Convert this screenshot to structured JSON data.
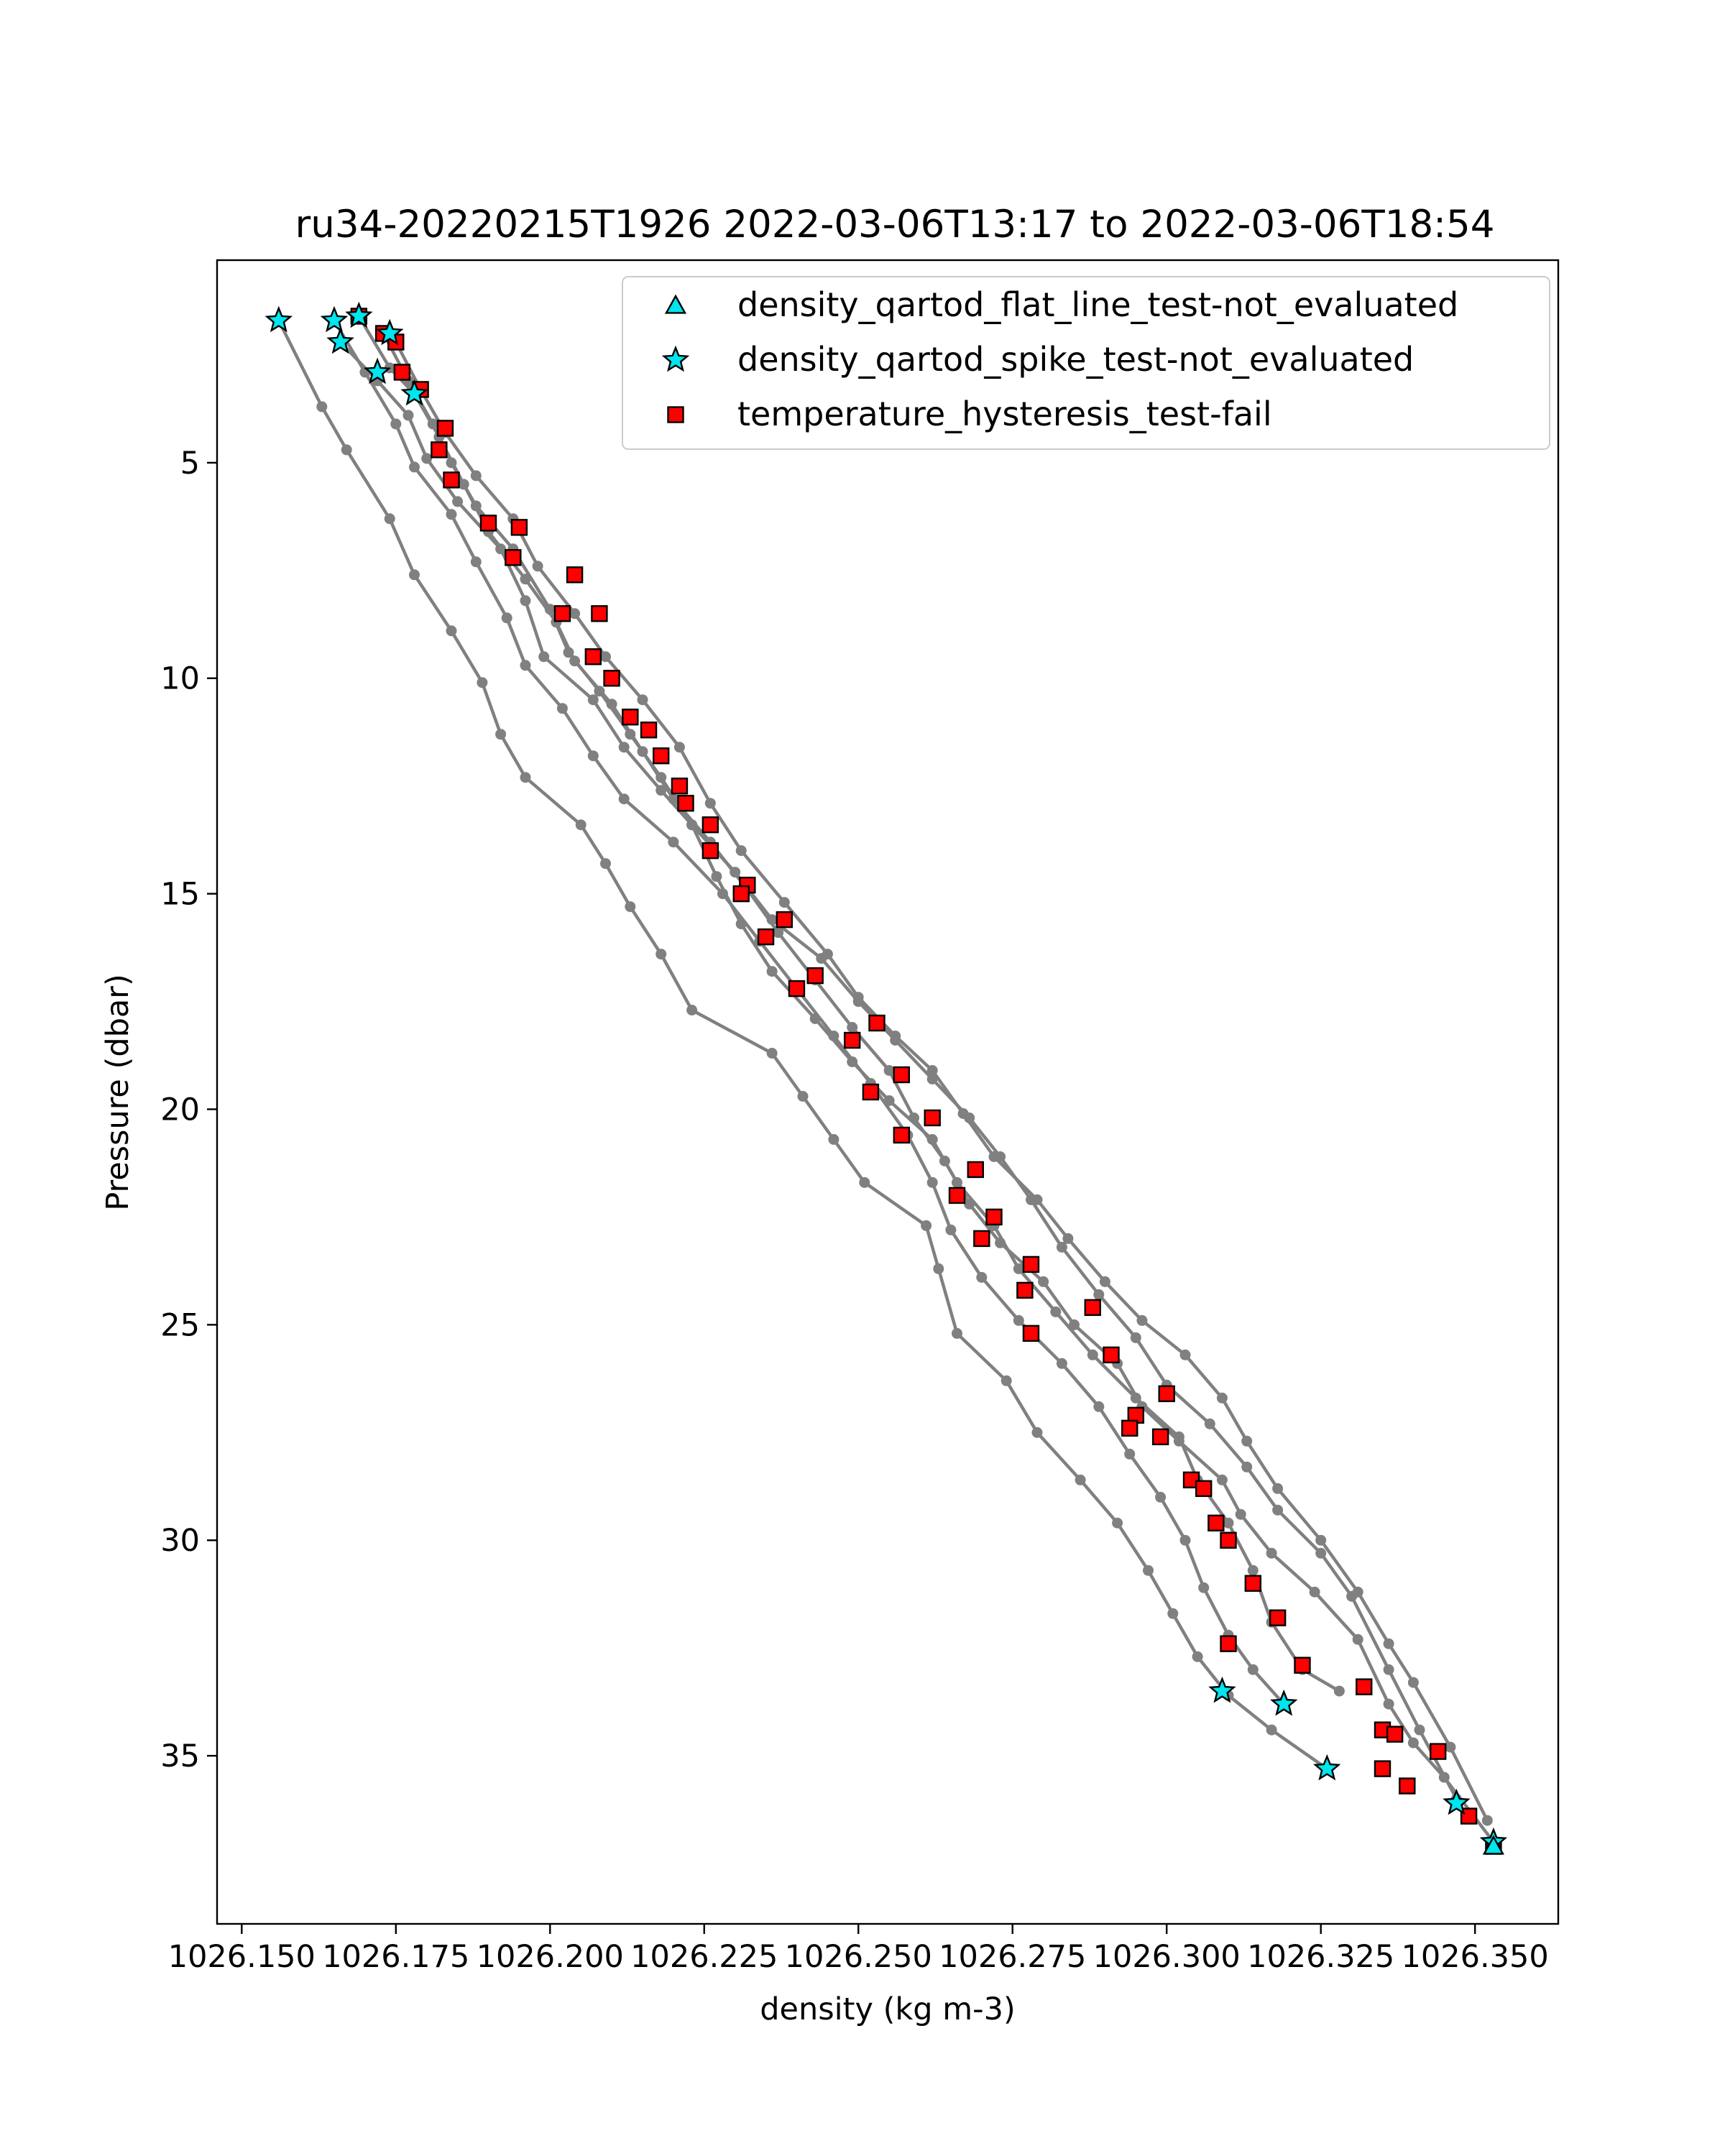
{
  "chart_data": {
    "type": "scatter",
    "title": "ru34-20220215T1926 2022-03-06T13:17 to 2022-03-06T18:54",
    "xlabel": "density (kg m-3)",
    "ylabel": "Pressure (dbar)",
    "xlim": [
      1026.146,
      1026.3635
    ],
    "ylim": [
      38.9,
      0.3
    ],
    "y_inverted": true,
    "grid": false,
    "legend_position": "top-right",
    "x_ticks": [
      1026.15,
      1026.175,
      1026.2,
      1026.225,
      1026.25,
      1026.275,
      1026.3,
      1026.325,
      1026.35
    ],
    "x_tick_labels": [
      "1026.150",
      "1026.175",
      "1026.200",
      "1026.225",
      "1026.250",
      "1026.275",
      "1026.300",
      "1026.325",
      "1026.350"
    ],
    "y_ticks": [
      5,
      10,
      15,
      20,
      25,
      30,
      35
    ],
    "y_tick_labels": [
      "5",
      "10",
      "15",
      "20",
      "25",
      "30",
      "35"
    ],
    "colors": {
      "profile_line": "#808080",
      "flat_line_marker": "#00e5ee",
      "spike_marker": "#00e5ee",
      "hysteresis_marker": "#ff0000",
      "marker_edge": "#000000"
    },
    "profiles": [
      [
        [
          1026.156,
          1.7
        ],
        [
          1026.163,
          3.7
        ],
        [
          1026.167,
          4.7
        ],
        [
          1026.174,
          6.3
        ],
        [
          1026.178,
          7.6
        ],
        [
          1026.184,
          8.9
        ],
        [
          1026.189,
          10.1
        ],
        [
          1026.192,
          11.3
        ],
        [
          1026.196,
          12.3
        ],
        [
          1026.205,
          13.4
        ],
        [
          1026.209,
          14.3
        ],
        [
          1026.213,
          15.3
        ],
        [
          1026.218,
          16.4
        ],
        [
          1026.223,
          17.7
        ],
        [
          1026.236,
          18.7
        ],
        [
          1026.241,
          19.7
        ],
        [
          1026.246,
          20.7
        ],
        [
          1026.251,
          21.7
        ],
        [
          1026.261,
          22.7
        ],
        [
          1026.263,
          23.7
        ],
        [
          1026.266,
          25.2
        ],
        [
          1026.274,
          26.3
        ],
        [
          1026.279,
          27.5
        ],
        [
          1026.286,
          28.6
        ],
        [
          1026.292,
          29.6
        ],
        [
          1026.297,
          30.7
        ],
        [
          1026.301,
          31.7
        ],
        [
          1026.305,
          32.7
        ],
        [
          1026.31,
          33.6
        ],
        [
          1026.317,
          34.4
        ],
        [
          1026.326,
          35.3
        ]
      ],
      [
        [
          1026.165,
          1.7
        ],
        [
          1026.17,
          2.9
        ],
        [
          1026.175,
          4.1
        ],
        [
          1026.178,
          5.1
        ],
        [
          1026.184,
          6.2
        ],
        [
          1026.188,
          7.3
        ],
        [
          1026.193,
          8.6
        ],
        [
          1026.196,
          9.7
        ],
        [
          1026.202,
          10.7
        ],
        [
          1026.207,
          11.8
        ],
        [
          1026.212,
          12.8
        ],
        [
          1026.22,
          13.8
        ],
        [
          1026.228,
          15.0
        ],
        [
          1026.234,
          16.1
        ],
        [
          1026.24,
          17.2
        ],
        [
          1026.246,
          18.3
        ],
        [
          1026.252,
          19.4
        ],
        [
          1026.258,
          20.6
        ],
        [
          1026.262,
          21.7
        ],
        [
          1026.265,
          22.8
        ],
        [
          1026.27,
          23.9
        ],
        [
          1026.276,
          24.9
        ],
        [
          1026.283,
          25.9
        ],
        [
          1026.289,
          26.9
        ],
        [
          1026.294,
          28.0
        ],
        [
          1026.299,
          29.0
        ],
        [
          1026.303,
          30.0
        ],
        [
          1026.306,
          31.1
        ],
        [
          1026.31,
          32.2
        ],
        [
          1026.314,
          33.0
        ],
        [
          1026.319,
          33.8
        ]
      ],
      [
        [
          1026.166,
          2.2
        ],
        [
          1026.172,
          3.1
        ],
        [
          1026.177,
          3.9
        ],
        [
          1026.18,
          4.9
        ],
        [
          1026.185,
          5.9
        ],
        [
          1026.192,
          7.0
        ],
        [
          1026.196,
          8.2
        ],
        [
          1026.199,
          9.5
        ],
        [
          1026.207,
          10.5
        ],
        [
          1026.212,
          11.6
        ],
        [
          1026.218,
          12.6
        ],
        [
          1026.223,
          13.4
        ],
        [
          1026.227,
          14.6
        ],
        [
          1026.231,
          15.7
        ],
        [
          1026.236,
          16.8
        ],
        [
          1026.243,
          17.9
        ],
        [
          1026.249,
          18.9
        ],
        [
          1026.255,
          19.8
        ],
        [
          1026.262,
          20.7
        ],
        [
          1026.266,
          21.7
        ],
        [
          1026.272,
          22.7
        ],
        [
          1026.276,
          23.7
        ],
        [
          1026.282,
          24.7
        ],
        [
          1026.288,
          25.7
        ],
        [
          1026.295,
          26.7
        ],
        [
          1026.302,
          27.6
        ],
        [
          1026.305,
          28.6
        ],
        [
          1026.31,
          29.6
        ],
        [
          1026.314,
          30.7
        ],
        [
          1026.317,
          31.9
        ],
        [
          1026.322,
          33.0
        ],
        [
          1026.328,
          33.5
        ]
      ],
      [
        [
          1026.169,
          1.6
        ],
        [
          1026.174,
          2.8
        ],
        [
          1026.178,
          3.4
        ],
        [
          1026.182,
          4.4
        ],
        [
          1026.186,
          5.5
        ],
        [
          1026.19,
          6.6
        ],
        [
          1026.196,
          7.7
        ],
        [
          1026.201,
          8.7
        ],
        [
          1026.204,
          9.6
        ],
        [
          1026.21,
          10.6
        ],
        [
          1026.215,
          11.7
        ],
        [
          1026.22,
          12.8
        ],
        [
          1026.226,
          13.8
        ],
        [
          1026.232,
          14.9
        ],
        [
          1026.237,
          15.9
        ],
        [
          1026.243,
          17.0
        ],
        [
          1026.249,
          18.1
        ],
        [
          1026.255,
          19.1
        ],
        [
          1026.259,
          20.2
        ],
        [
          1026.264,
          21.2
        ],
        [
          1026.268,
          22.2
        ],
        [
          1026.273,
          23.1
        ],
        [
          1026.28,
          24.0
        ],
        [
          1026.285,
          25.0
        ],
        [
          1026.292,
          25.9
        ],
        [
          1026.296,
          26.9
        ],
        [
          1026.302,
          27.7
        ],
        [
          1026.309,
          28.6
        ],
        [
          1026.312,
          29.4
        ],
        [
          1026.317,
          30.3
        ],
        [
          1026.324,
          31.2
        ],
        [
          1026.331,
          32.3
        ],
        [
          1026.336,
          33.8
        ],
        [
          1026.34,
          34.7
        ],
        [
          1026.345,
          35.5
        ],
        [
          1026.353,
          37.0
        ]
      ],
      [
        [
          1026.173,
          2.0
        ],
        [
          1026.177,
          3.1
        ],
        [
          1026.181,
          4.1
        ],
        [
          1026.184,
          5.0
        ],
        [
          1026.188,
          6.0
        ],
        [
          1026.194,
          7.0
        ],
        [
          1026.2,
          8.4
        ],
        [
          1026.203,
          9.4
        ],
        [
          1026.208,
          10.3
        ],
        [
          1026.213,
          11.3
        ],
        [
          1026.218,
          12.3
        ],
        [
          1026.223,
          13.4
        ],
        [
          1026.23,
          14.5
        ],
        [
          1026.236,
          15.6
        ],
        [
          1026.244,
          16.5
        ],
        [
          1026.25,
          17.5
        ],
        [
          1026.256,
          18.4
        ],
        [
          1026.262,
          19.3
        ],
        [
          1026.268,
          20.2
        ],
        [
          1026.273,
          21.1
        ],
        [
          1026.278,
          22.1
        ],
        [
          1026.283,
          23.2
        ],
        [
          1026.289,
          24.3
        ],
        [
          1026.295,
          25.3
        ],
        [
          1026.3,
          26.4
        ],
        [
          1026.307,
          27.3
        ],
        [
          1026.313,
          28.3
        ],
        [
          1026.318,
          29.3
        ],
        [
          1026.325,
          30.3
        ],
        [
          1026.33,
          31.3
        ],
        [
          1026.336,
          33.0
        ],
        [
          1026.341,
          34.4
        ],
        [
          1026.347,
          36.0
        ]
      ],
      [
        [
          1026.175,
          2.2
        ],
        [
          1026.179,
          3.3
        ],
        [
          1026.183,
          4.3
        ],
        [
          1026.188,
          5.3
        ],
        [
          1026.194,
          6.3
        ],
        [
          1026.198,
          7.4
        ],
        [
          1026.204,
          8.5
        ],
        [
          1026.209,
          9.5
        ],
        [
          1026.215,
          10.5
        ],
        [
          1026.221,
          11.6
        ],
        [
          1026.226,
          12.9
        ],
        [
          1026.231,
          14.0
        ],
        [
          1026.238,
          15.2
        ],
        [
          1026.245,
          16.4
        ],
        [
          1026.25,
          17.4
        ],
        [
          1026.256,
          18.3
        ],
        [
          1026.262,
          19.1
        ],
        [
          1026.267,
          20.1
        ],
        [
          1026.272,
          21.1
        ],
        [
          1026.279,
          22.1
        ],
        [
          1026.284,
          23.0
        ],
        [
          1026.29,
          24.0
        ],
        [
          1026.296,
          24.9
        ],
        [
          1026.303,
          25.7
        ],
        [
          1026.309,
          26.7
        ],
        [
          1026.313,
          27.7
        ],
        [
          1026.318,
          28.8
        ],
        [
          1026.325,
          30.0
        ],
        [
          1026.331,
          31.2
        ],
        [
          1026.336,
          32.4
        ],
        [
          1026.34,
          33.3
        ],
        [
          1026.346,
          34.8
        ],
        [
          1026.352,
          36.5
        ]
      ]
    ],
    "series": [
      {
        "name": "density_qartod_flat_line_test-not_evaluated",
        "marker": "triangle",
        "points": [
          [
            1026.353,
            37.1
          ]
        ]
      },
      {
        "name": "density_qartod_spike_test-not_evaluated",
        "marker": "star",
        "points": [
          [
            1026.156,
            1.7
          ],
          [
            1026.165,
            1.7
          ],
          [
            1026.166,
            2.2
          ],
          [
            1026.169,
            1.6
          ],
          [
            1026.172,
            2.9
          ],
          [
            1026.174,
            2.0
          ],
          [
            1026.178,
            3.4
          ],
          [
            1026.309,
            33.5
          ],
          [
            1026.319,
            33.8
          ],
          [
            1026.326,
            35.3
          ],
          [
            1026.347,
            36.1
          ],
          [
            1026.353,
            37.0
          ]
        ]
      },
      {
        "name": "temperature_hysteresis_test-fail",
        "marker": "square",
        "points": [
          [
            1026.169,
            1.6
          ],
          [
            1026.173,
            2.0
          ],
          [
            1026.175,
            2.2
          ],
          [
            1026.176,
            2.9
          ],
          [
            1026.179,
            3.3
          ],
          [
            1026.183,
            4.2
          ],
          [
            1026.182,
            4.7
          ],
          [
            1026.184,
            5.4
          ],
          [
            1026.19,
            6.4
          ],
          [
            1026.195,
            6.5
          ],
          [
            1026.194,
            7.2
          ],
          [
            1026.204,
            7.6
          ],
          [
            1026.202,
            8.5
          ],
          [
            1026.208,
            8.5
          ],
          [
            1026.207,
            9.5
          ],
          [
            1026.21,
            10.0
          ],
          [
            1026.213,
            10.9
          ],
          [
            1026.216,
            11.2
          ],
          [
            1026.218,
            11.8
          ],
          [
            1026.221,
            12.5
          ],
          [
            1026.222,
            12.9
          ],
          [
            1026.226,
            13.4
          ],
          [
            1026.226,
            14.0
          ],
          [
            1026.232,
            14.8
          ],
          [
            1026.231,
            15.0
          ],
          [
            1026.238,
            15.6
          ],
          [
            1026.235,
            16.0
          ],
          [
            1026.243,
            16.9
          ],
          [
            1026.24,
            17.2
          ],
          [
            1026.253,
            18.0
          ],
          [
            1026.249,
            18.4
          ],
          [
            1026.257,
            19.2
          ],
          [
            1026.252,
            19.6
          ],
          [
            1026.262,
            20.2
          ],
          [
            1026.257,
            20.6
          ],
          [
            1026.269,
            21.4
          ],
          [
            1026.266,
            22.0
          ],
          [
            1026.272,
            22.5
          ],
          [
            1026.27,
            23.0
          ],
          [
            1026.278,
            23.6
          ],
          [
            1026.277,
            24.2
          ],
          [
            1026.278,
            25.2
          ],
          [
            1026.288,
            24.6
          ],
          [
            1026.291,
            25.7
          ],
          [
            1026.3,
            26.6
          ],
          [
            1026.295,
            27.1
          ],
          [
            1026.294,
            27.4
          ],
          [
            1026.299,
            27.6
          ],
          [
            1026.304,
            28.6
          ],
          [
            1026.306,
            28.8
          ],
          [
            1026.308,
            29.6
          ],
          [
            1026.31,
            30.0
          ],
          [
            1026.314,
            31.0
          ],
          [
            1026.318,
            31.8
          ],
          [
            1026.31,
            32.4
          ],
          [
            1026.322,
            32.9
          ],
          [
            1026.332,
            33.4
          ],
          [
            1026.335,
            34.4
          ],
          [
            1026.337,
            34.5
          ],
          [
            1026.344,
            34.9
          ],
          [
            1026.335,
            35.3
          ],
          [
            1026.339,
            35.7
          ],
          [
            1026.349,
            36.4
          ],
          [
            1026.353,
            37.1
          ]
        ]
      }
    ]
  }
}
